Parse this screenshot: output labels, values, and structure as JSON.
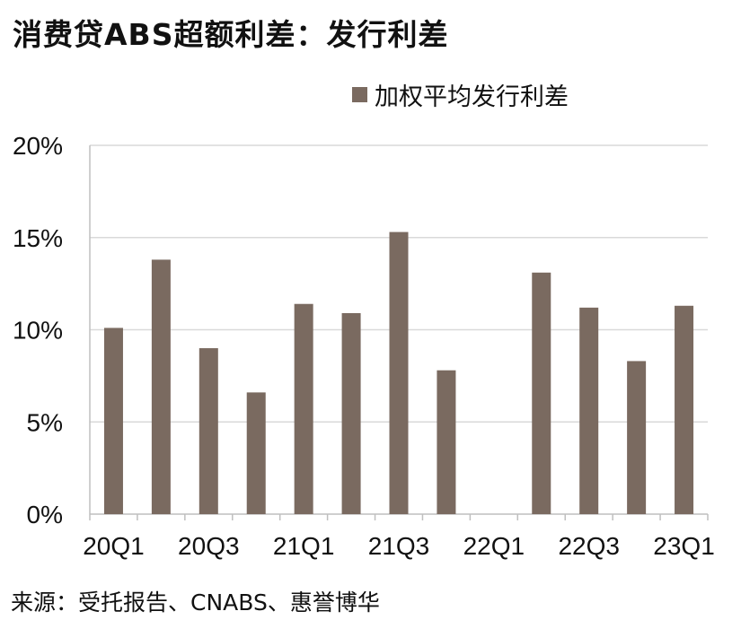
{
  "header": {
    "title": "消费贷ABS超额利差：发行利差"
  },
  "legend": {
    "label": "加权平均发行利差"
  },
  "footer": {
    "source": "来源：受托报告、CNABS、惠誉博华"
  },
  "colors": {
    "bar": "#7a6a60",
    "grid": "#d9d9d9",
    "axis": "#bfbfbf"
  },
  "chart_data": {
    "type": "bar",
    "categories": [
      "20Q1",
      "20Q2",
      "20Q3",
      "20Q4",
      "21Q1",
      "21Q2",
      "21Q3",
      "21Q4",
      "22Q1",
      "22Q2",
      "22Q3",
      "22Q4",
      "23Q1"
    ],
    "x_tick_labels": [
      "20Q1",
      "20Q3",
      "21Q1",
      "21Q3",
      "22Q1",
      "22Q3",
      "23Q1"
    ],
    "series": [
      {
        "name": "加权平均发行利差",
        "values": [
          10.1,
          13.8,
          9.0,
          6.6,
          11.4,
          10.9,
          15.3,
          7.8,
          null,
          13.1,
          11.2,
          8.3,
          11.3
        ]
      }
    ],
    "y_tick_labels": [
      "0%",
      "5%",
      "10%",
      "15%",
      "20%"
    ],
    "ylim": [
      0,
      20
    ],
    "yticks": [
      0,
      5,
      10,
      15,
      20
    ],
    "grid": true,
    "legend_position": "top-right"
  }
}
